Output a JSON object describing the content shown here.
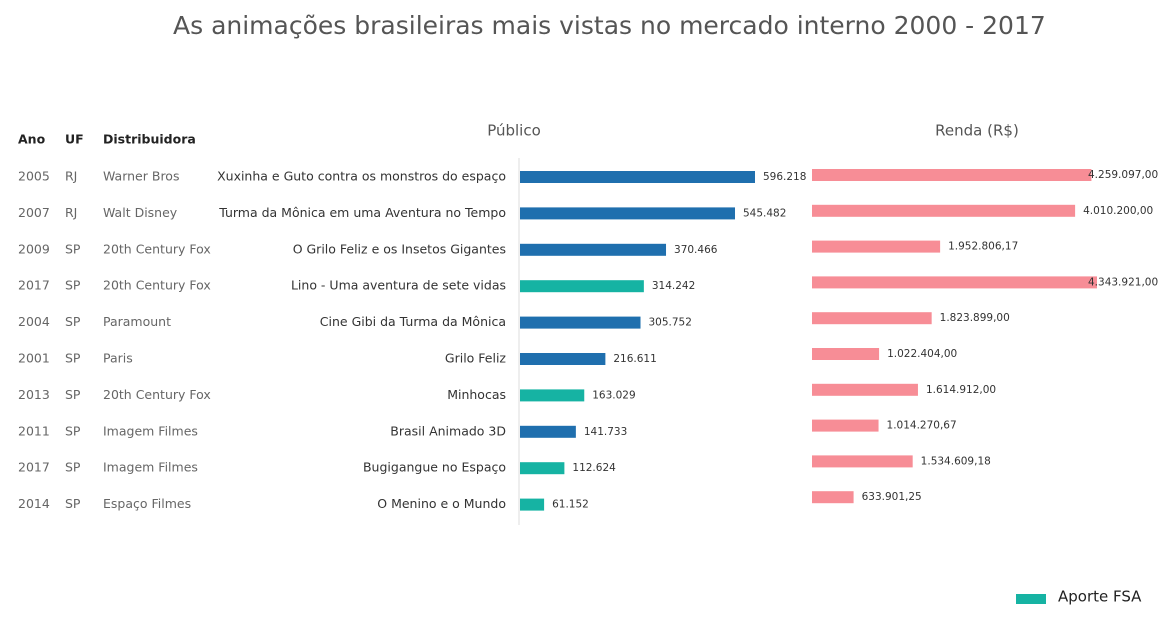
{
  "title": "As animações brasileiras mais vistas no mercado interno 2000 - 2017",
  "table": {
    "headers": [
      "Ano",
      "UF",
      "Distribuidora"
    ],
    "rows": [
      [
        "2005",
        "RJ",
        "Warner Bros"
      ],
      [
        "2007",
        "RJ",
        "Walt Disney"
      ],
      [
        "2009",
        "SP",
        "20th Century Fox"
      ],
      [
        "2017",
        "SP",
        "20th Century Fox"
      ],
      [
        "2004",
        "SP",
        "Paramount"
      ],
      [
        "2001",
        "SP",
        "Paris"
      ],
      [
        "2013",
        "SP",
        "20th Century Fox"
      ],
      [
        "2011",
        "SP",
        "Imagem Filmes"
      ],
      [
        "2017",
        "SP",
        "Imagem Filmes"
      ],
      [
        "2014",
        "SP",
        "Espaço Filmes"
      ]
    ]
  },
  "chart_data": [
    {
      "type": "bar",
      "orientation": "horizontal",
      "title": "Público",
      "categories": [
        "Xuxinha e Guto contra os monstros do espaço",
        "Turma da Mônica em uma Aventura no Tempo",
        "O Grilo Feliz e os Insetos Gigantes",
        "Lino - Uma aventura de sete vidas",
        "Cine Gibi da Turma da Mônica",
        "Grilo Feliz",
        "Minhocas",
        "Brasil Animado 3D",
        "Bugigangue no Espaço",
        "O Menino e o Mundo"
      ],
      "values": [
        596218,
        545482,
        370466,
        314242,
        305752,
        216611,
        163029,
        141733,
        112624,
        61152
      ],
      "value_labels": [
        "596.218",
        "545.482",
        "370.466",
        "314.242",
        "305.752",
        "216.611",
        "163.029",
        "141.733",
        "112.624",
        "61.152"
      ],
      "colors": [
        "#1f6fae",
        "#1f6fae",
        "#1f6fae",
        "#16b3a3",
        "#1f6fae",
        "#1f6fae",
        "#16b3a3",
        "#1f6fae",
        "#16b3a3",
        "#16b3a3"
      ],
      "legend": [
        {
          "name": "Aporte FSA",
          "color": "#16b3a3"
        }
      ]
    },
    {
      "type": "bar",
      "orientation": "horizontal",
      "title": "Renda  (R$)",
      "values": [
        4259097.0,
        4010200.0,
        1952806.17,
        4343921.0,
        1823899.0,
        1022404.0,
        1614912.0,
        1014270.67,
        1534609.18,
        633901.25
      ],
      "value_labels": [
        "4.259.097,00",
        "4.010.200,00",
        "1.952.806,17",
        "4.343.921,00",
        "1.823.899,00",
        "1.022.404,00",
        "1.614.912,00",
        "1.014.270,67",
        "1.534.609,18",
        "633.901,25"
      ],
      "color": "#f78d96"
    }
  ]
}
